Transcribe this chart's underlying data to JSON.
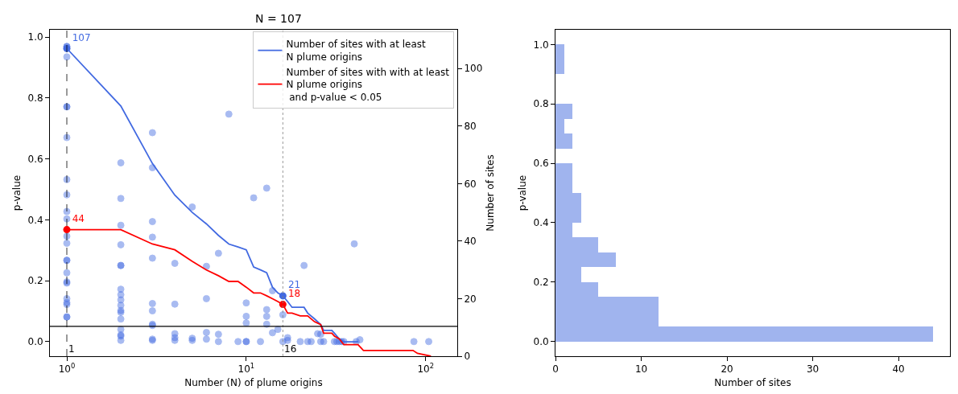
{
  "chart_data": [
    {
      "type": "scatter",
      "title": "N = 107",
      "xlabel": "Number (N) of plume origins",
      "ylabel": "p-value",
      "y2label": "Number of sites",
      "log": "x",
      "xlim": [
        0.805,
        150
      ],
      "xticks": [
        {
          "value": 1,
          "label": "10$^{0}$"
        },
        {
          "value": 10,
          "label": "10$^{1}$"
        },
        {
          "value": 100,
          "label": "10$^{2}$"
        }
      ],
      "ylim": [
        -0.048,
        1.024
      ],
      "yticks": [
        {
          "value": 0,
          "label": "0.0"
        },
        {
          "value": 0.2,
          "label": "0.2"
        },
        {
          "value": 0.4,
          "label": "0.4"
        },
        {
          "value": 0.6,
          "label": "0.6"
        },
        {
          "value": 0.8,
          "label": "0.8"
        },
        {
          "value": 1,
          "label": "1.0"
        }
      ],
      "y2lim": [
        0,
        113.5
      ],
      "y2ticks": [
        0,
        20,
        40,
        60,
        80,
        100
      ],
      "legend": "top right",
      "series": [
        {
          "type": "scatter",
          "marker": "circle",
          "color": "#4169e1",
          "x": [
            1,
            1,
            1,
            1,
            1,
            1,
            1,
            1,
            1,
            1,
            1,
            1,
            1,
            1,
            1,
            1,
            1,
            1,
            1,
            1,
            1,
            1,
            2,
            2,
            2,
            2,
            2,
            2,
            2,
            2,
            2,
            2,
            2,
            2,
            2,
            2,
            2,
            2,
            2,
            3,
            3,
            3,
            3,
            3,
            3,
            3,
            3,
            3,
            3,
            3,
            4,
            4,
            4,
            4,
            4,
            5,
            5,
            5,
            6,
            6,
            6,
            6,
            7,
            7,
            7,
            8,
            9,
            10,
            10,
            10,
            10,
            10,
            11,
            13,
            13,
            13,
            13,
            12,
            14,
            14,
            15,
            16,
            16,
            17,
            17,
            21,
            20,
            22,
            23,
            25,
            26,
            26,
            27,
            31,
            32,
            33,
            34,
            35,
            40,
            41,
            43,
            86,
            104
          ],
          "values": [
            0.969,
            0.969,
            0.935,
            0.771,
            0.771,
            0.67,
            0.532,
            0.482,
            0.427,
            0.403,
            0.346,
            0.323,
            0.267,
            0.267,
            0.226,
            0.196,
            0.192,
            0.141,
            0.128,
            0.122,
            0.081,
            0.081,
            0.587,
            0.47,
            0.382,
            0.318,
            0.25,
            0.25,
            0.172,
            0.154,
            0.137,
            0.119,
            0.102,
            0.096,
            0.074,
            0.04,
            0.022,
            0.018,
            0.004,
            0.686,
            0.571,
            0.394,
            0.343,
            0.274,
            0.125,
            0.101,
            0.057,
            0.053,
            0.008,
            0.004,
            0.257,
            0.123,
            0.026,
            0.013,
            0.004,
            0.442,
            0.011,
            0.004,
            0.247,
            0.141,
            0.03,
            0.008,
            0.29,
            0.024,
            0.0,
            0.747,
            0.0,
            0.127,
            0.083,
            0.061,
            0.0,
            0.0,
            0.472,
            0.504,
            0.105,
            0.083,
            0.057,
            0.0,
            0.167,
            0.029,
            0.04,
            0.088,
            0.0,
            0.013,
            0.004,
            0.25,
            0.0,
            0.0,
            0.0,
            0.026,
            0.024,
            0.0,
            0.0,
            0.0,
            0.0,
            0.0,
            0.0,
            0.0,
            0.321,
            0.0,
            0.006,
            0.0,
            0.0
          ]
        },
        {
          "type": "line",
          "axis": "y2",
          "name": "Number of sites with at least\nN plume origins",
          "color": "#4169e1",
          "x": [
            1,
            2,
            3,
            4,
            5,
            6,
            7,
            8,
            9,
            10,
            11,
            12,
            13,
            14,
            15,
            16,
            17,
            18,
            21,
            22,
            24,
            26,
            27,
            30,
            31,
            33,
            35,
            42
          ],
          "values": [
            107,
            87,
            67,
            56,
            50,
            46,
            42,
            39,
            38,
            37,
            31,
            30,
            29,
            24,
            22,
            21,
            19,
            17,
            17,
            15,
            13,
            11,
            9,
            9,
            8,
            6,
            5,
            5
          ]
        },
        {
          "type": "line",
          "axis": "y2",
          "name": "Number of sites with with at least\nN plume origins\n and p-value < 0.05",
          "color": "#ff0000",
          "x": [
            1,
            2,
            3,
            4,
            5,
            6,
            7,
            8,
            9,
            10,
            11,
            12,
            13,
            14,
            15,
            16,
            17,
            18,
            20,
            22,
            24,
            26,
            27,
            30,
            31,
            33,
            35,
            42,
            45,
            85,
            90,
            107
          ],
          "values": [
            44,
            44,
            39,
            37,
            33,
            30,
            28,
            26,
            26,
            24,
            22,
            22,
            21,
            20,
            19,
            18,
            15,
            15,
            14,
            14,
            12,
            11,
            8,
            8,
            7,
            6,
            4,
            4,
            2,
            2,
            1,
            0
          ]
        },
        {
          "type": "scatter",
          "marker": "circle",
          "axis": "y2",
          "color": "#4169e1",
          "x": [
            1,
            16
          ],
          "values": [
            107,
            21
          ],
          "value_labels": [
            "107",
            "21"
          ]
        },
        {
          "type": "scatter",
          "marker": "circle",
          "axis": "y2",
          "color": "#ff0000",
          "x": [
            1,
            16
          ],
          "values": [
            44,
            18
          ],
          "value_labels": [
            "44",
            "18"
          ]
        }
      ],
      "ref_lines": [
        {
          "axis": "x",
          "value": 1,
          "label": "1",
          "color": "#000000",
          "line_style": "dashed"
        },
        {
          "axis": "x",
          "value": 16,
          "label": "16",
          "color": "#808080",
          "line_style": "dotted"
        },
        {
          "axis": "y",
          "value": 0.05,
          "color": "#000000",
          "line_style": "solid"
        }
      ]
    },
    {
      "type": "histogram",
      "orientation": "horizontal",
      "xlabel": "Number of sites",
      "ylabel": "p-value",
      "color": "#a0b4ee",
      "bins": [
        0,
        0.05,
        0.1,
        0.15,
        0.2,
        0.25,
        0.3,
        0.35,
        0.4,
        0.45,
        0.5,
        0.55,
        0.6,
        0.65,
        0.7,
        0.75,
        0.8,
        0.85,
        0.9,
        0.95,
        1.0
      ],
      "values": [
        44,
        12,
        12,
        5,
        3,
        7,
        5,
        2,
        3,
        3,
        2,
        2,
        0,
        2,
        1,
        2,
        0,
        0,
        1,
        1
      ],
      "xlim": [
        0,
        46
      ],
      "xticks": [
        0,
        10,
        20,
        30,
        40
      ],
      "ylim": [
        -0.05,
        1.05
      ],
      "yticks": [
        {
          "value": 0,
          "label": "0.0"
        },
        {
          "value": 0.2,
          "label": "0.2"
        },
        {
          "value": 0.4,
          "label": "0.4"
        },
        {
          "value": 0.6,
          "label": "0.6"
        },
        {
          "value": 0.8,
          "label": "0.8"
        },
        {
          "value": 1,
          "label": "1.0"
        }
      ]
    }
  ]
}
